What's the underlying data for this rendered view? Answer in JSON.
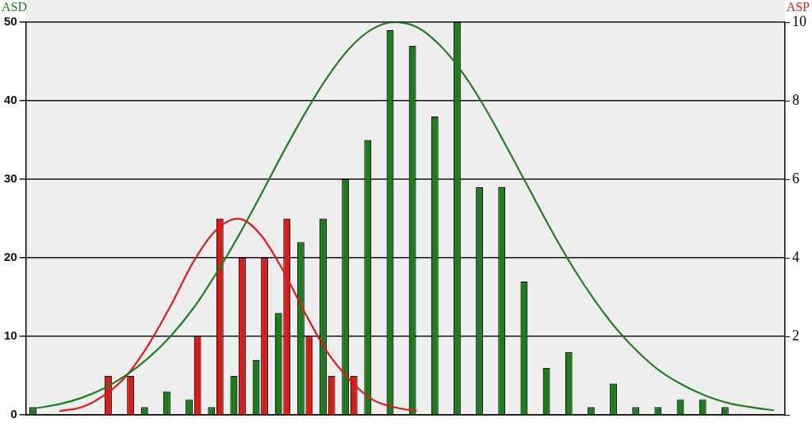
{
  "chart_data": {
    "type": "bar",
    "ylabel": "ASD",
    "y2label": "ASP",
    "categories": [
      null,
      null,
      null,
      null,
      null,
      null,
      null,
      null,
      null,
      null,
      null,
      null,
      null,
      null,
      null,
      null,
      null,
      null,
      null,
      null,
      null,
      null,
      null,
      null,
      null,
      null,
      null,
      null,
      null,
      null,
      null,
      null,
      null,
      null
    ],
    "series": [
      {
        "color": "#1a7f1a",
        "values": [
          1,
          0,
          0,
          0,
          0,
          1,
          3,
          2,
          1,
          5,
          7,
          13,
          22,
          25,
          30,
          35,
          49,
          47,
          38,
          50,
          29,
          29,
          17,
          6,
          8,
          1,
          4,
          1,
          1,
          2,
          2,
          1,
          0,
          0
        ]
      },
      {
        "color": "#e01818",
        "axis": "y2",
        "values": [
          0,
          0,
          0,
          1,
          1,
          0,
          0,
          2,
          5,
          4,
          4,
          5,
          2,
          1,
          1,
          0,
          0,
          0,
          0,
          0,
          0,
          0,
          0,
          0,
          0,
          0,
          0,
          0,
          0,
          0,
          0,
          0,
          0,
          0
        ]
      },
      {
        "type": "line",
        "color": "#1a7f1a",
        "values": [
          0.9,
          1.4,
          2.2,
          3.4,
          5.1,
          7.3,
          10.1,
          13.6,
          17.9,
          22.7,
          27.9,
          33.3,
          38.4,
          43.0,
          46.7,
          49.1,
          50.0,
          49.4,
          47.2,
          43.8,
          39.4,
          34.3,
          29.0,
          23.7,
          18.8,
          14.5,
          10.8,
          7.8,
          5.4,
          3.7,
          2.4,
          1.5,
          1.0,
          0.6
        ]
      },
      {
        "type": "line",
        "color": "#e01818",
        "axis": "y2",
        "values": [
          null,
          0.1,
          0.2,
          0.5,
          1.0,
          1.8,
          2.8,
          3.9,
          4.7,
          5.0,
          4.6,
          3.7,
          2.6,
          1.6,
          0.9,
          0.4,
          0.2,
          0.1,
          null,
          null,
          null,
          null,
          null,
          null,
          null,
          null,
          null,
          null,
          null,
          null,
          null,
          null,
          null,
          null
        ]
      }
    ],
    "ylim": [
      0,
      50
    ],
    "yticks": [
      0,
      10,
      20,
      30,
      40,
      50
    ],
    "y2lim": [
      0,
      10
    ],
    "y2ticks": [
      {
        "value": 0,
        "label": null
      },
      2,
      4,
      6,
      8,
      10
    ],
    "grid": "y",
    "marker": "none",
    "tick_labels": "y"
  }
}
